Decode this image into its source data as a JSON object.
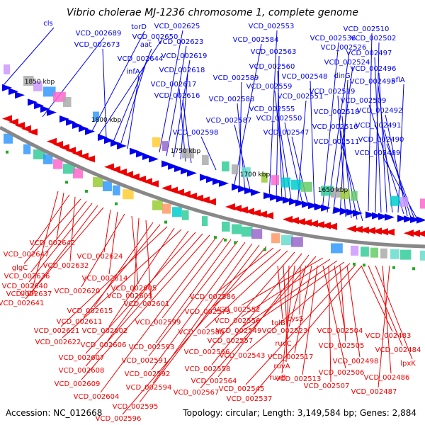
{
  "title": "Vibrio cholerae MJ-1236 chromosome 1, complete genome",
  "footer": {
    "accession": "Accession: NC_012668",
    "topology": "Topology: circular; Length: 3,149,584 bp; Genes: 2,884"
  },
  "scale_ticks": [
    "1850 kbp",
    "1800 kbp",
    "1750 kbp",
    "1700 kbp",
    "1650 kbp"
  ],
  "colors": {
    "forward_genes": "#0000ee",
    "reverse_genes": "#ee0000",
    "backbone": "#888888",
    "feature_green": "#22aa22"
  },
  "top_labels": [
    "cls",
    "VCD_002689",
    "torD",
    "VCD_002650",
    "VCD_002673",
    "aat",
    "VCD_002644",
    "infA",
    "VCD_002625",
    "VCD_002623",
    "VCD_002619",
    "VCD_002618",
    "VCD_002617",
    "VCD_002616",
    "VCD_002598",
    "VCD_002584",
    "VCD_002589",
    "VCD_002588",
    "VCD_002587",
    "VCD_002553",
    "VCD_002563",
    "VCD_002560",
    "VCD_002559",
    "VCD_002555",
    "VCD_002551",
    "VCD_002550",
    "VCD_002547",
    "VCD_002548",
    "VCD_002536",
    "VCD_002526",
    "VCD_002524",
    "dinG",
    "VCD_002519",
    "VCD_002518",
    "VCD_002516",
    "VCD_002511",
    "VCD_002510",
    "VCD_002502",
    "VCD_002497",
    "VCD_002496",
    "VCD_002495",
    "pflA",
    "VCD_002509",
    "VCD_002492",
    "VCD_002491",
    "VCD_002490",
    "VCD_002489"
  ],
  "bottom_labels": [
    "glgA",
    "VCD_002642",
    "VCD_002647",
    "VCD_002632",
    "glgC",
    "VCD_002636",
    "VCD_002640",
    "VCD_002637",
    "VCD_002641",
    "VCD_002624",
    "VCD_002614",
    "VCD_002620",
    "VCD_002605",
    "VCD_002603",
    "VCD_002601",
    "VCD_002615",
    "VCD_002611",
    "VCD_002621",
    "VCD_002602",
    "VCD_002622",
    "VCD_002606",
    "VCD_002607",
    "VCD_002608",
    "VCD_002609",
    "VCD_002604",
    "VCD_002599",
    "VCD_002593",
    "VCD_002591",
    "VCD_002592",
    "VCD_002594",
    "VCD_002595",
    "VCD_002596",
    "VCD_002586",
    "VCD_002579",
    "VCD_002580",
    "VCD_002566",
    "VCD_002558",
    "VCD_002564",
    "VCD_002567",
    "VCD_002552",
    "VCD_002556",
    "VCD_002549",
    "VCD_002557",
    "VCD_002543",
    "VCD_002545",
    "VCD_002537",
    "tolB",
    "ruvC",
    "ruvA",
    "ruvB",
    "cysS",
    "VCD_002523",
    "VCD_002517",
    "VCD_002513",
    "VCD_002506",
    "VCD_002507",
    "VCD_002504",
    "VCD_002505",
    "VCD_002498",
    "VCD_002483",
    "VCD_002484",
    "lpxK",
    "VCD_002486",
    "VCD_002487"
  ]
}
